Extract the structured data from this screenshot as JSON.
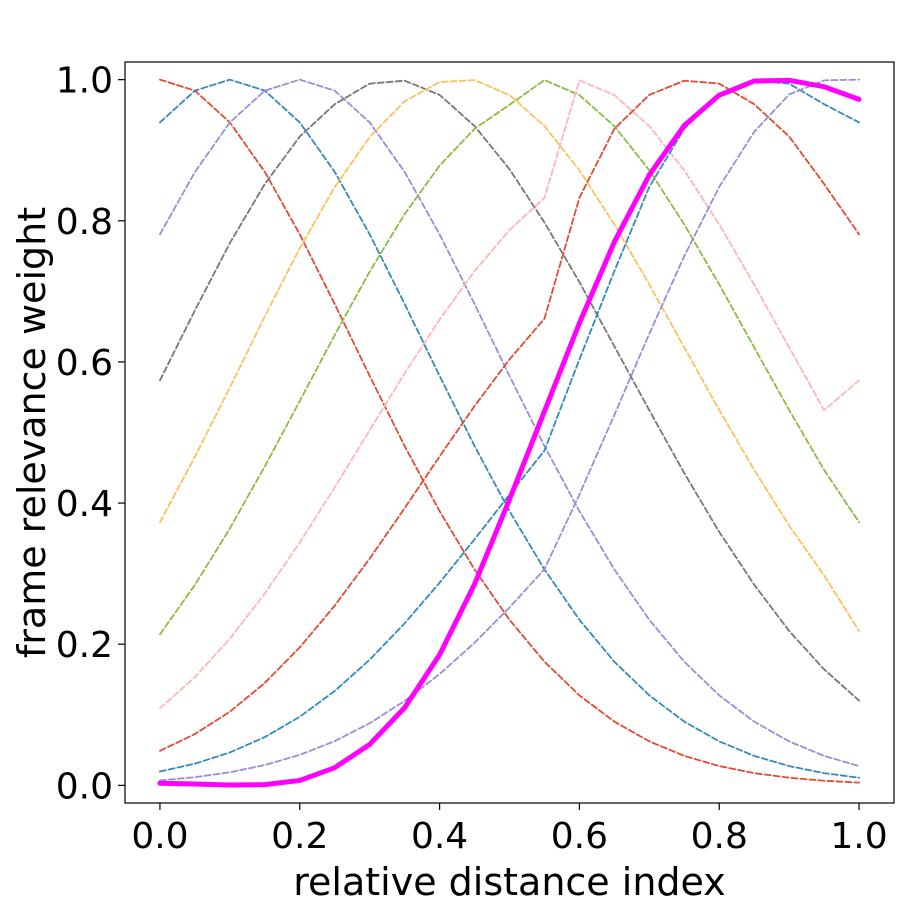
{
  "chart_data": {
    "type": "line",
    "title": "",
    "xlabel": "relative distance index",
    "ylabel": "frame relevance weight",
    "xlim": [
      -0.05,
      1.05
    ],
    "ylim": [
      -0.025,
      1.025
    ],
    "xticks": [
      0.0,
      0.2,
      0.4,
      0.6,
      0.8,
      1.0
    ],
    "xtick_labels": [
      "0.0",
      "0.2",
      "0.4",
      "0.6",
      "0.8",
      "1.0"
    ],
    "yticks": [
      0.0,
      0.2,
      0.4,
      0.6,
      0.8,
      1.0
    ],
    "ytick_labels": [
      "0.0",
      "0.2",
      "0.4",
      "0.6",
      "0.8",
      "1.0"
    ],
    "grid": false,
    "legend": "none",
    "x": [
      0.0,
      0.05,
      0.1,
      0.15,
      0.2,
      0.25,
      0.3,
      0.35,
      0.4,
      0.45,
      0.5,
      0.55,
      0.6,
      0.65,
      0.7,
      0.75,
      0.8,
      0.85,
      0.9,
      0.95,
      1.0
    ],
    "series": [
      {
        "style": "dashed",
        "color": "#E24A33",
        "values": [
          1.0,
          0.9844,
          0.9394,
          0.8692,
          0.7808,
          0.6821,
          0.5802,
          0.4809,
          0.3886,
          0.3059,
          0.2346,
          0.1752,
          0.1275,
          0.0903,
          0.0623,
          0.0418,
          0.0273,
          0.0174,
          0.0108,
          0.0065,
          0.0039
        ]
      },
      {
        "style": "dashed",
        "color": "#348ABD",
        "values": [
          0.9394,
          0.9844,
          1.0,
          0.9844,
          0.9394,
          0.8692,
          0.7808,
          0.6821,
          0.5802,
          0.4809,
          0.3886,
          0.3059,
          0.2346,
          0.1752,
          0.1275,
          0.0903,
          0.0623,
          0.0418,
          0.0273,
          0.0174,
          0.0108
        ]
      },
      {
        "style": "dashed",
        "color": "#988ED5",
        "values": [
          0.7808,
          0.8692,
          0.9394,
          0.9844,
          1.0,
          0.9844,
          0.9394,
          0.8692,
          0.7808,
          0.6821,
          0.5802,
          0.4809,
          0.3886,
          0.3059,
          0.2346,
          0.1752,
          0.1275,
          0.0903,
          0.0623,
          0.0418,
          0.0273
        ]
      },
      {
        "style": "dashed",
        "color": "#777777",
        "values": [
          0.5738,
          0.6731,
          0.7684,
          0.8522,
          0.9194,
          0.9652,
          0.9944,
          0.9985,
          0.9784,
          0.9343,
          0.8731,
          0.7977,
          0.7131,
          0.6221,
          0.5314,
          0.4424,
          0.3591,
          0.2843,
          0.2188,
          0.1644,
          0.1201
        ]
      },
      {
        "style": "dashed",
        "color": "#FBC15E",
        "values": [
          0.3729,
          0.4657,
          0.5637,
          0.6645,
          0.7612,
          0.8479,
          0.9187,
          0.9693,
          0.9966,
          0.9994,
          0.9781,
          0.9342,
          0.8715,
          0.7949,
          0.7097,
          0.6206,
          0.5319,
          0.4469,
          0.3682,
          0.2975,
          0.2188
        ]
      },
      {
        "style": "dashed",
        "color": "#8EBA42",
        "values": [
          0.2141,
          0.284,
          0.3641,
          0.452,
          0.5447,
          0.6382,
          0.728,
          0.8094,
          0.8781,
          0.9304,
          0.9644,
          0.9994,
          0.9781,
          0.9342,
          0.8715,
          0.7949,
          0.7097,
          0.6206,
          0.5319,
          0.4469,
          0.3729
        ]
      },
      {
        "style": "dashed",
        "color": "#FFB5B8",
        "values": [
          0.1092,
          0.1534,
          0.2078,
          0.2719,
          0.3441,
          0.4222,
          0.5033,
          0.5838,
          0.6601,
          0.7287,
          0.7869,
          0.8326,
          0.999,
          0.9781,
          0.9342,
          0.8715,
          0.7949,
          0.7097,
          0.6206,
          0.5319,
          0.5738
        ]
      },
      {
        "style": "dashed",
        "color": "#E24A33",
        "values": [
          0.049,
          0.0727,
          0.1044,
          0.1452,
          0.1955,
          0.2547,
          0.3213,
          0.3928,
          0.466,
          0.5375,
          0.6036,
          0.6613,
          0.8326,
          0.9304,
          0.9784,
          0.9985,
          0.9944,
          0.9652,
          0.9194,
          0.8522,
          0.7808
        ]
      },
      {
        "style": "dashed",
        "color": "#348ABD",
        "values": [
          0.0196,
          0.0307,
          0.0466,
          0.0684,
          0.0972,
          0.1337,
          0.178,
          0.2296,
          0.2871,
          0.3487,
          0.412,
          0.4744,
          0.6036,
          0.7287,
          0.8481,
          0.9304,
          0.9784,
          0.9985,
          0.9944,
          0.9652,
          0.9394
        ]
      },
      {
        "style": "dashed",
        "color": "#988ED5",
        "values": [
          0.007,
          0.0116,
          0.0185,
          0.0288,
          0.0432,
          0.0627,
          0.088,
          0.1196,
          0.1577,
          0.2021,
          0.252,
          0.3064,
          0.412,
          0.525,
          0.64,
          0.75,
          0.848,
          0.926,
          0.979,
          0.999,
          1.0
        ]
      },
      {
        "style": "solid",
        "color": "#FF00FF",
        "values": [
          0.003,
          0.002,
          0.0005,
          0.001,
          0.007,
          0.025,
          0.058,
          0.11,
          0.185,
          0.285,
          0.405,
          0.53,
          0.655,
          0.77,
          0.865,
          0.935,
          0.978,
          0.998,
          0.999,
          0.99,
          0.972
        ]
      }
    ]
  }
}
